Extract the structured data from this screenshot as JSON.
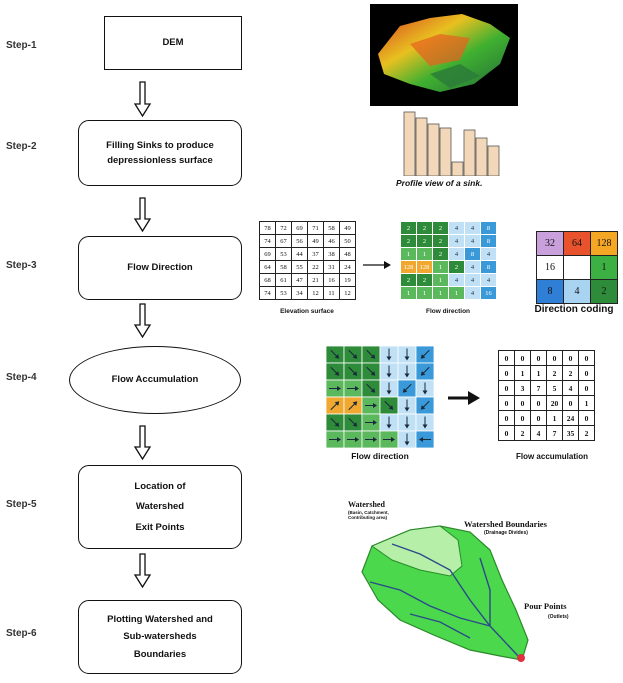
{
  "steps": [
    {
      "label": "Step-1",
      "text": "DEM"
    },
    {
      "label": "Step-2",
      "text": "Filling Sinks to produce depressionless surface"
    },
    {
      "label": "Step-3",
      "text": "Flow Direction"
    },
    {
      "label": "Step-4",
      "text": "Flow Accumulation"
    },
    {
      "label": "Step-5",
      "lines": [
        "Location of",
        "Watershed",
        "Exit Points"
      ]
    },
    {
      "label": "Step-6",
      "lines": [
        "Plotting Watershed and",
        "Sub-watersheds",
        "Boundaries"
      ]
    }
  ],
  "sink_caption": "Profile view of a sink.",
  "elevation": {
    "caption": "Elevation surface",
    "rows": [
      [
        78,
        72,
        69,
        71,
        58,
        49
      ],
      [
        74,
        67,
        56,
        49,
        46,
        50
      ],
      [
        69,
        53,
        44,
        37,
        38,
        48
      ],
      [
        64,
        58,
        55,
        22,
        31,
        24
      ],
      [
        68,
        61,
        47,
        21,
        16,
        19
      ],
      [
        74,
        53,
        34,
        12,
        11,
        12
      ]
    ]
  },
  "flow_direction_small": {
    "caption": "Flow direction",
    "rows": [
      [
        2,
        2,
        2,
        4,
        4,
        8
      ],
      [
        2,
        2,
        2,
        4,
        4,
        8
      ],
      [
        1,
        1,
        2,
        4,
        8,
        4
      ],
      [
        128,
        128,
        1,
        2,
        4,
        8
      ],
      [
        2,
        2,
        1,
        4,
        4,
        4
      ],
      [
        1,
        1,
        1,
        1,
        4,
        16
      ]
    ]
  },
  "direction_coding": {
    "caption": "Direction coding",
    "cells": [
      "32",
      "64",
      "128",
      "16",
      "",
      "1",
      "8",
      "4",
      "2"
    ],
    "colors": [
      "#c9a0dc",
      "#e8532d",
      "#f5a623",
      "#ffffff",
      "#ffffff",
      "#3cb043",
      "#2f7fd6",
      "#a8d4f2",
      "#2e8b3a"
    ]
  },
  "flow_direction_caption": "Flow direction",
  "accumulation": {
    "caption": "Flow accumulation",
    "rows": [
      [
        0,
        0,
        0,
        0,
        0,
        0
      ],
      [
        0,
        1,
        1,
        2,
        2,
        0
      ],
      [
        0,
        3,
        7,
        5,
        4,
        0
      ],
      [
        0,
        0,
        0,
        20,
        0,
        1
      ],
      [
        0,
        0,
        0,
        1,
        24,
        0
      ],
      [
        0,
        2,
        4,
        7,
        35,
        2
      ]
    ]
  },
  "watershed": {
    "label": "Watershed",
    "sub": "(Basin, Catchment, Contributing area)",
    "boundaries": "Watershed Boundaries",
    "boundaries_sub": "(Drainage Divides)",
    "pour": "Pour Points",
    "pour_sub": "(Outlets)"
  },
  "colors": {
    "dark_green": "#2e8b3a",
    "mid_green": "#5cb85c",
    "light_blue": "#bfe0f5",
    "blue": "#3a9ad9",
    "orange": "#f0a830",
    "watershed_green": "#4cd84c",
    "watershed_light": "#b6f0a8",
    "sink_bar": "#f2d8b8",
    "pour_point": "#e03040"
  }
}
